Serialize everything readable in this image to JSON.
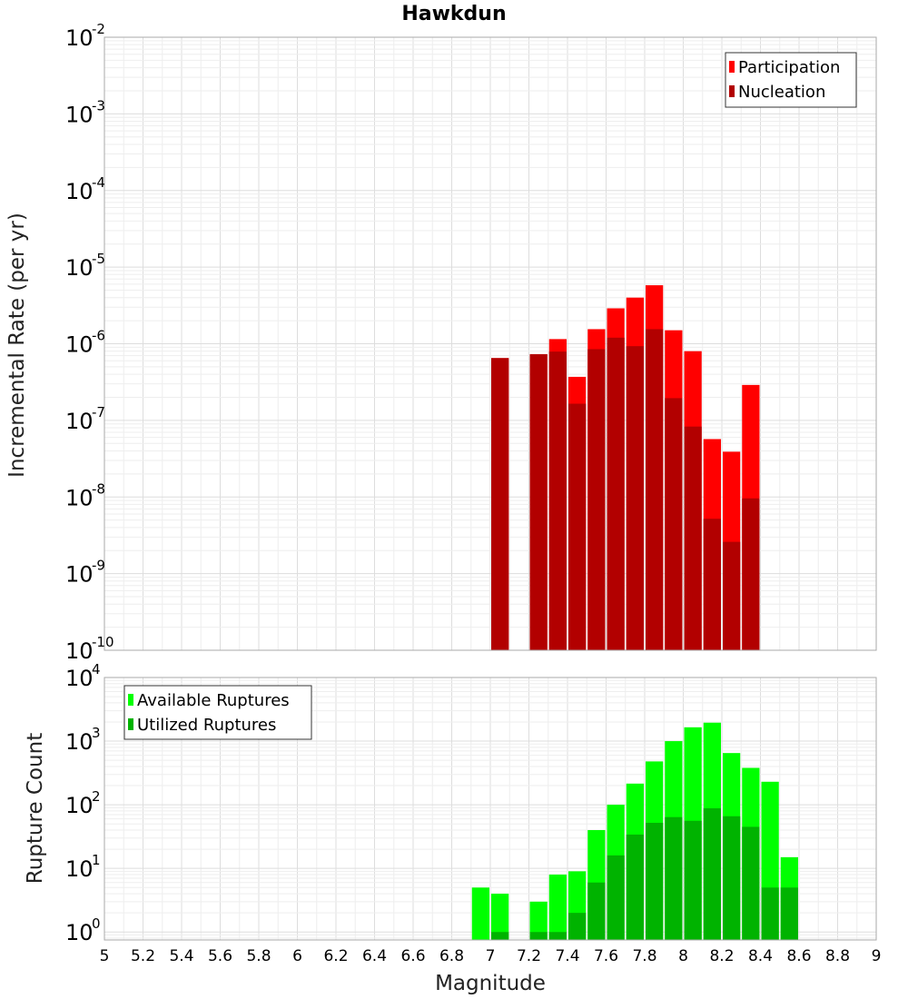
{
  "chart_data": [
    {
      "type": "bar",
      "title": "Hawkdun",
      "ylabel": "Incremental Rate (per yr)",
      "xlabel": "",
      "y_scale": "log",
      "ylim": [
        1e-10,
        0.01
      ],
      "xlim": [
        5,
        9
      ],
      "bar_width": 0.1,
      "grid": true,
      "legend_position": "top-right",
      "y_tick_exponents": [
        "-10",
        "-9",
        "-8",
        "-7",
        "-6",
        "-5",
        "-4",
        "-3",
        "-2"
      ],
      "x": [
        7.05,
        7.25,
        7.35,
        7.45,
        7.55,
        7.65,
        7.75,
        7.85,
        7.95,
        8.05,
        8.15,
        8.25,
        8.35
      ],
      "series": [
        {
          "name": "Participation",
          "color": "#ff0000",
          "values": [
            6.5e-07,
            7.3e-07,
            1.15e-06,
            3.7e-07,
            1.55e-06,
            2.9e-06,
            4e-06,
            5.8e-06,
            1.5e-06,
            8e-07,
            5.7e-08,
            3.9e-08,
            2.9e-07
          ]
        },
        {
          "name": "Nucleation",
          "color": "#b20000",
          "values": [
            6.5e-07,
            7.3e-07,
            7.9e-07,
            1.65e-07,
            8.5e-07,
            1.2e-06,
            9.3e-07,
            1.55e-06,
            1.95e-07,
            8.3e-08,
            5.2e-09,
            2.6e-09,
            9.6e-09
          ]
        }
      ]
    },
    {
      "type": "bar",
      "title": "",
      "ylabel": "Rupture Count",
      "xlabel": "Magnitude",
      "y_scale": "log",
      "ylim": [
        0.75,
        10000
      ],
      "xlim": [
        5,
        9
      ],
      "bar_width": 0.1,
      "grid": true,
      "legend_position": "top-left",
      "y_tick_exponents": [
        "0",
        "1",
        "2",
        "3",
        "4"
      ],
      "x_ticks": [
        "5",
        "5.2",
        "5.4",
        "5.6",
        "5.8",
        "6",
        "6.2",
        "6.4",
        "6.6",
        "6.8",
        "7",
        "7.2",
        "7.4",
        "7.6",
        "7.8",
        "8",
        "8.2",
        "8.4",
        "8.6",
        "8.8",
        "9"
      ],
      "x": [
        6.95,
        7.05,
        7.25,
        7.35,
        7.45,
        7.55,
        7.65,
        7.75,
        7.85,
        7.95,
        8.05,
        8.15,
        8.25,
        8.35,
        8.45,
        8.55
      ],
      "series": [
        {
          "name": "Available Ruptures",
          "color": "#00ff00",
          "values": [
            5,
            4,
            3,
            8,
            9,
            40,
            100,
            215,
            480,
            1000,
            1650,
            1950,
            650,
            380,
            230,
            15
          ]
        },
        {
          "name": "Utilized Ruptures",
          "color": "#00b300",
          "values": [
            0,
            1,
            1,
            1,
            2,
            6,
            16,
            34,
            52,
            64,
            56,
            88,
            66,
            45,
            5,
            5
          ]
        }
      ]
    }
  ]
}
